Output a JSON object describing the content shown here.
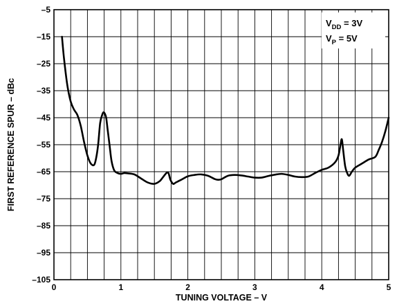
{
  "chart_data": {
    "type": "line",
    "title": "",
    "xlabel": "TUNING VOLTAGE – V",
    "ylabel": "FIRST REFERENCE SPUR – dBc",
    "xlim": [
      0,
      5
    ],
    "ylim": [
      -105,
      -5
    ],
    "x_ticks": [
      0,
      1,
      2,
      3,
      4,
      5
    ],
    "x_tick_labels": [
      "0",
      "1",
      "2",
      "3",
      "4",
      "5"
    ],
    "x_minor_step": 0.25,
    "y_ticks": [
      -5,
      -15,
      -25,
      -35,
      -45,
      -55,
      -65,
      -75,
      -85,
      -95,
      -105
    ],
    "y_tick_labels": [
      "–5",
      "–15",
      "–25",
      "–35",
      "–45",
      "–55",
      "–65",
      "–75",
      "–85",
      "–95",
      "–105"
    ],
    "grid": true,
    "legend": {
      "placement": "top-right",
      "lines": [
        {
          "main": "V",
          "sub": "DD",
          "rest": " = 3V"
        },
        {
          "main": "V",
          "sub": "P",
          "rest": " = 5V"
        }
      ]
    },
    "series": [
      {
        "x": [
          0.12,
          0.15,
          0.2,
          0.25,
          0.3,
          0.35,
          0.4,
          0.45,
          0.5,
          0.55,
          0.6,
          0.63,
          0.66,
          0.69,
          0.72,
          0.74,
          0.76,
          0.78,
          0.8,
          0.83,
          0.86,
          0.9,
          0.95,
          1.0,
          1.05,
          1.1,
          1.2,
          1.3,
          1.4,
          1.5,
          1.58,
          1.63,
          1.68,
          1.71,
          1.74,
          1.78,
          1.82,
          1.9,
          2.0,
          2.1,
          2.2,
          2.3,
          2.4,
          2.45,
          2.5,
          2.6,
          2.7,
          2.8,
          2.9,
          3.0,
          3.1,
          3.2,
          3.3,
          3.4,
          3.5,
          3.6,
          3.7,
          3.8,
          3.9,
          4.0,
          4.1,
          4.2,
          4.25,
          4.28,
          4.3,
          4.32,
          4.35,
          4.38,
          4.41,
          4.45,
          4.5,
          4.6,
          4.7,
          4.8,
          4.85,
          4.9,
          4.95,
          5.0
        ],
        "y": [
          -15,
          -23,
          -33,
          -39,
          -42,
          -44,
          -48,
          -54,
          -59,
          -62,
          -62.5,
          -60,
          -55,
          -47,
          -44,
          -43,
          -43.5,
          -45,
          -49,
          -55,
          -61,
          -64.5,
          -65.5,
          -65.8,
          -65.5,
          -65.6,
          -66,
          -67.5,
          -69,
          -69.5,
          -68.5,
          -67,
          -65.5,
          -65.5,
          -68,
          -69.5,
          -69,
          -68,
          -66.7,
          -66.2,
          -66,
          -66.5,
          -67.7,
          -68,
          -67.8,
          -66.5,
          -66.2,
          -66.4,
          -66.8,
          -67.2,
          -67.2,
          -66.6,
          -66.1,
          -65.8,
          -66.2,
          -66.8,
          -67,
          -66.8,
          -65.5,
          -64.3,
          -63.5,
          -61.5,
          -59,
          -55,
          -53,
          -57,
          -63,
          -65.5,
          -66.5,
          -65,
          -63.5,
          -62,
          -60.5,
          -59.5,
          -57,
          -54,
          -50,
          -45
        ]
      }
    ]
  }
}
